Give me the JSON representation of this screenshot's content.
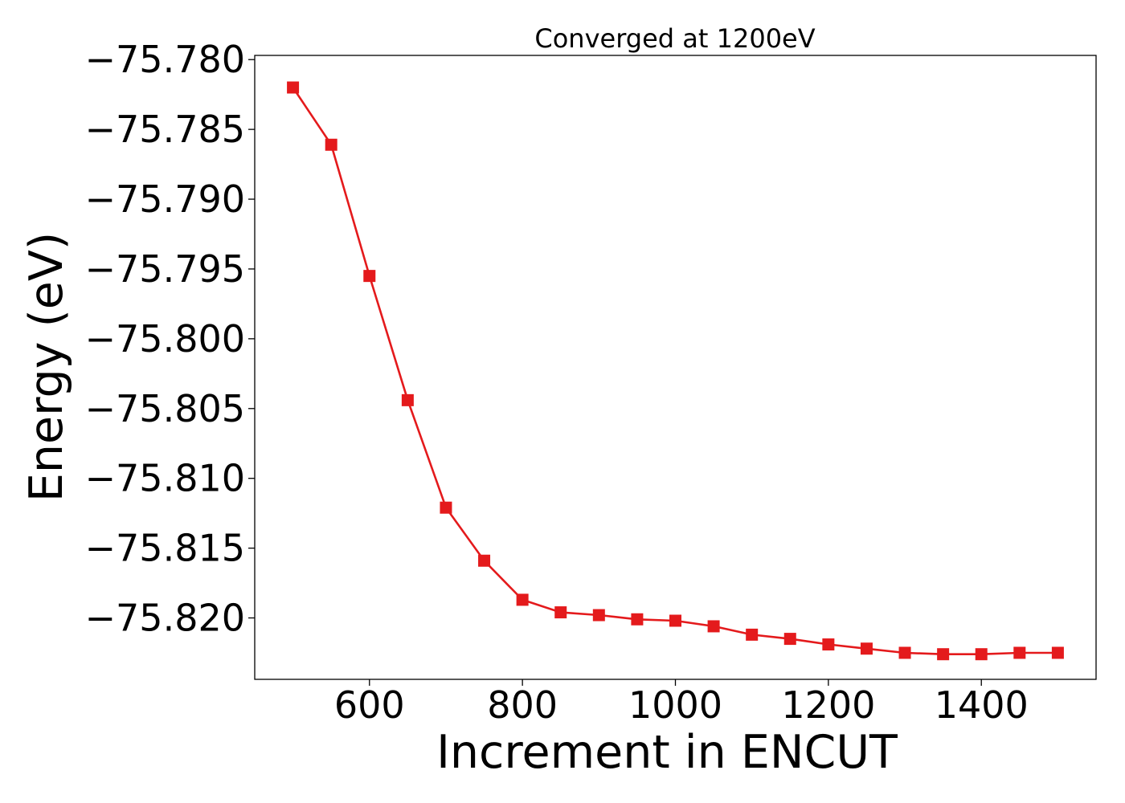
{
  "chart_data": {
    "type": "line",
    "title": "Converged at 1200eV",
    "xlabel": "Increment in ENCUT",
    "ylabel": "Energy (eV)",
    "xlim": [
      450,
      1550
    ],
    "ylim": [
      -75.8244,
      -75.7797
    ],
    "x_ticks": [
      600,
      800,
      1000,
      1200,
      1400
    ],
    "x_tick_labels": [
      "600",
      "800",
      "1000",
      "1200",
      "1400"
    ],
    "y_ticks": [
      -75.78,
      -75.785,
      -75.79,
      -75.795,
      -75.8,
      -75.805,
      -75.81,
      -75.815,
      -75.82
    ],
    "y_tick_labels": [
      "−75.780",
      "−75.785",
      "−75.790",
      "−75.795",
      "−75.800",
      "−75.805",
      "−75.810",
      "−75.815",
      "−75.820"
    ],
    "grid": false,
    "series": [
      {
        "color": "#e41a1c",
        "marker": "square",
        "x": [
          500,
          550,
          600,
          650,
          700,
          750,
          800,
          850,
          900,
          950,
          1000,
          1050,
          1100,
          1150,
          1200,
          1250,
          1300,
          1350,
          1400,
          1450,
          1500
        ],
        "y": [
          -75.782,
          -75.7861,
          -75.7955,
          -75.8044,
          -75.8121,
          -75.8159,
          -75.8187,
          -75.8196,
          -75.8198,
          -75.8201,
          -75.8202,
          -75.8206,
          -75.8212,
          -75.8215,
          -75.8219,
          -75.8222,
          -75.8225,
          -75.8226,
          -75.8226,
          -75.8225,
          -75.8225
        ]
      }
    ]
  }
}
